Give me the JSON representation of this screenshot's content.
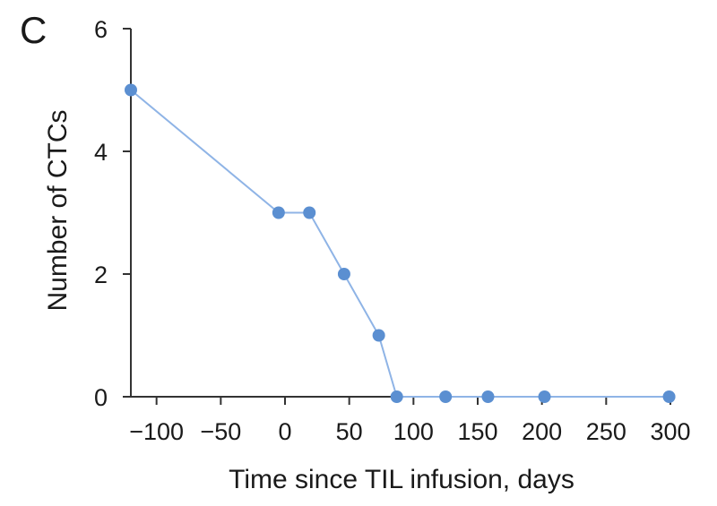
{
  "panel_label": "C",
  "colors": {
    "series": "#5b8fd1",
    "line": "#8fb4e6",
    "axis": "#333333"
  },
  "chart_data": {
    "type": "line",
    "title": "",
    "xlabel": "Time since TIL infusion, days",
    "ylabel": "Number of CTCs",
    "xlim": [
      -120,
      300
    ],
    "ylim": [
      0,
      6
    ],
    "xticks": [
      -100,
      -50,
      0,
      50,
      100,
      150,
      200,
      250,
      300
    ],
    "xtick_labels": [
      "−100",
      "−50",
      "0",
      "50",
      "100",
      "150",
      "200",
      "250",
      "300"
    ],
    "yticks": [
      0,
      2,
      4,
      6
    ],
    "ytick_labels": [
      "0",
      "2",
      "4",
      "6"
    ],
    "grid": false,
    "series": [
      {
        "x": [
          -120,
          -5,
          19,
          46,
          73,
          87,
          125,
          158,
          202,
          299
        ],
        "y": [
          5,
          3,
          3,
          2,
          1,
          0,
          0,
          0,
          0,
          0
        ]
      }
    ]
  }
}
